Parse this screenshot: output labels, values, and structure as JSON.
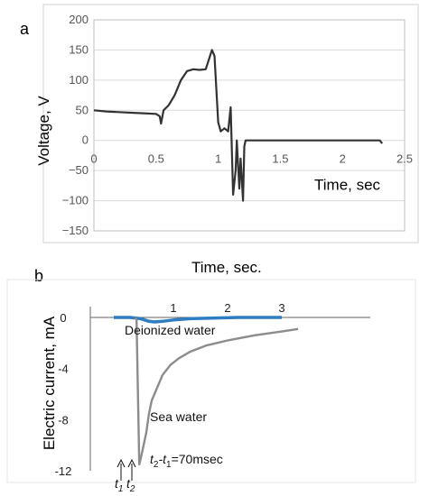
{
  "panel_a_label": "a",
  "panel_b_label": "b",
  "chart_data": [
    {
      "type": "line",
      "panel": "a",
      "title": "",
      "xlabel": "Time, sec",
      "ylabel": "Voltage, V",
      "xlim": [
        0,
        2.5
      ],
      "ylim": [
        -150,
        200
      ],
      "xticks": [
        "0",
        "0.5",
        "1",
        "1.5",
        "2",
        "2.5"
      ],
      "yticks": [
        "200",
        "150",
        "100",
        "50",
        "0",
        "−50",
        "−100",
        "−150"
      ],
      "grid": "horizontal",
      "series_color": "#333333",
      "x": [
        0,
        0.1,
        0.2,
        0.3,
        0.4,
        0.5,
        0.53,
        0.54,
        0.56,
        0.6,
        0.65,
        0.7,
        0.75,
        0.8,
        0.85,
        0.9,
        0.95,
        0.97,
        1.0,
        1.02,
        1.05,
        1.08,
        1.1,
        1.12,
        1.14,
        1.15,
        1.17,
        1.18,
        1.2,
        1.21,
        1.22,
        1.25,
        1.5,
        2.0,
        2.3,
        2.32
      ],
      "y": [
        50,
        48,
        47,
        46,
        45,
        44,
        40,
        28,
        50,
        58,
        75,
        100,
        115,
        118,
        117,
        118,
        150,
        140,
        30,
        15,
        20,
        15,
        55,
        -90,
        -50,
        0,
        -80,
        -30,
        -100,
        -10,
        0,
        0,
        0,
        0,
        0,
        -5
      ]
    },
    {
      "type": "line",
      "panel": "b",
      "title": "",
      "xlabel": "Time, sec.",
      "ylabel": "Electric current, mA",
      "xlim": [
        0,
        3.3
      ],
      "ylim": [
        -12,
        0.8
      ],
      "xticks": [
        "1",
        "2",
        "3"
      ],
      "yticks": [
        "0",
        "-4",
        "-8",
        "-12"
      ],
      "series": [
        {
          "name": "Deionized water",
          "color": "#2e7cc1",
          "x": [
            -0.1,
            0.2,
            0.4,
            0.55,
            0.65,
            0.8,
            1.0,
            1.3,
            1.7,
            2.2,
            2.6,
            3.0
          ],
          "y": [
            0,
            0,
            -0.1,
            -0.3,
            -0.35,
            -0.3,
            -0.2,
            -0.1,
            -0.05,
            0,
            0,
            0
          ]
        },
        {
          "name": "Sea water",
          "color": "#8c8c8c",
          "x": [
            0.3,
            0.32,
            0.37,
            0.4,
            0.45,
            0.5,
            0.55,
            0.6,
            0.7,
            0.8,
            0.95,
            1.1,
            1.3,
            1.6,
            2.0,
            2.5,
            3.0,
            3.3
          ],
          "y": [
            0,
            -0.2,
            -11.5,
            -11,
            -10,
            -9,
            -7.5,
            -6.5,
            -5.5,
            -4.5,
            -3.7,
            -3.2,
            -2.7,
            -2.2,
            -1.8,
            -1.4,
            -1.1,
            -0.9
          ]
        }
      ],
      "annotations": {
        "t1": "t",
        "t1_sub": "1",
        "t2": "t",
        "t2_sub": "2",
        "delta_a": "t",
        "delta_a_sub": "2",
        "delta_b": "-t",
        "delta_b_sub": "1",
        "delta_value": "=70msec"
      }
    }
  ]
}
